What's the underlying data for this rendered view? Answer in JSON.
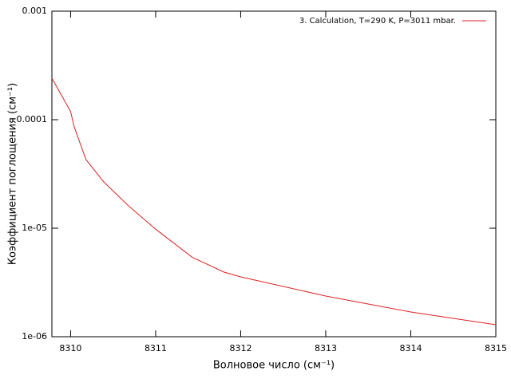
{
  "chart_data": {
    "type": "line",
    "xlabel": "Волновое число (см⁻¹)",
    "ylabel": "Коэффициент поглощения (см⁻¹)",
    "x": [
      8309.78,
      8310,
      8310.04,
      8310.08,
      8310.18,
      8310.39,
      8310.68,
      8311,
      8311.43,
      8311.8,
      8312,
      8313,
      8314,
      8315
    ],
    "series": [
      {
        "name": "3. Calculation, T=290 K, P=3011 mbar.",
        "color": "#dd2222",
        "values": [
          0.000241,
          0.000119,
          8.7e-05,
          7.1e-05,
          4.3e-05,
          2.67e-05,
          1.61e-05,
          9.8e-06,
          5.4e-06,
          3.95e-06,
          3.56e-06,
          2.37e-06,
          1.69e-06,
          1.29e-06
        ]
      }
    ],
    "xlim": [
      8309.78,
      8315
    ],
    "xticks": [
      8310,
      8311,
      8312,
      8313,
      8314,
      8315
    ],
    "ylim": [
      1e-06,
      0.001
    ],
    "yticks": [
      {
        "value": 1e-06,
        "label": "1e-06"
      },
      {
        "value": 1e-05,
        "label": "1e-05"
      },
      0.0001,
      0.001
    ],
    "ylog": true,
    "legend": "top-right"
  }
}
